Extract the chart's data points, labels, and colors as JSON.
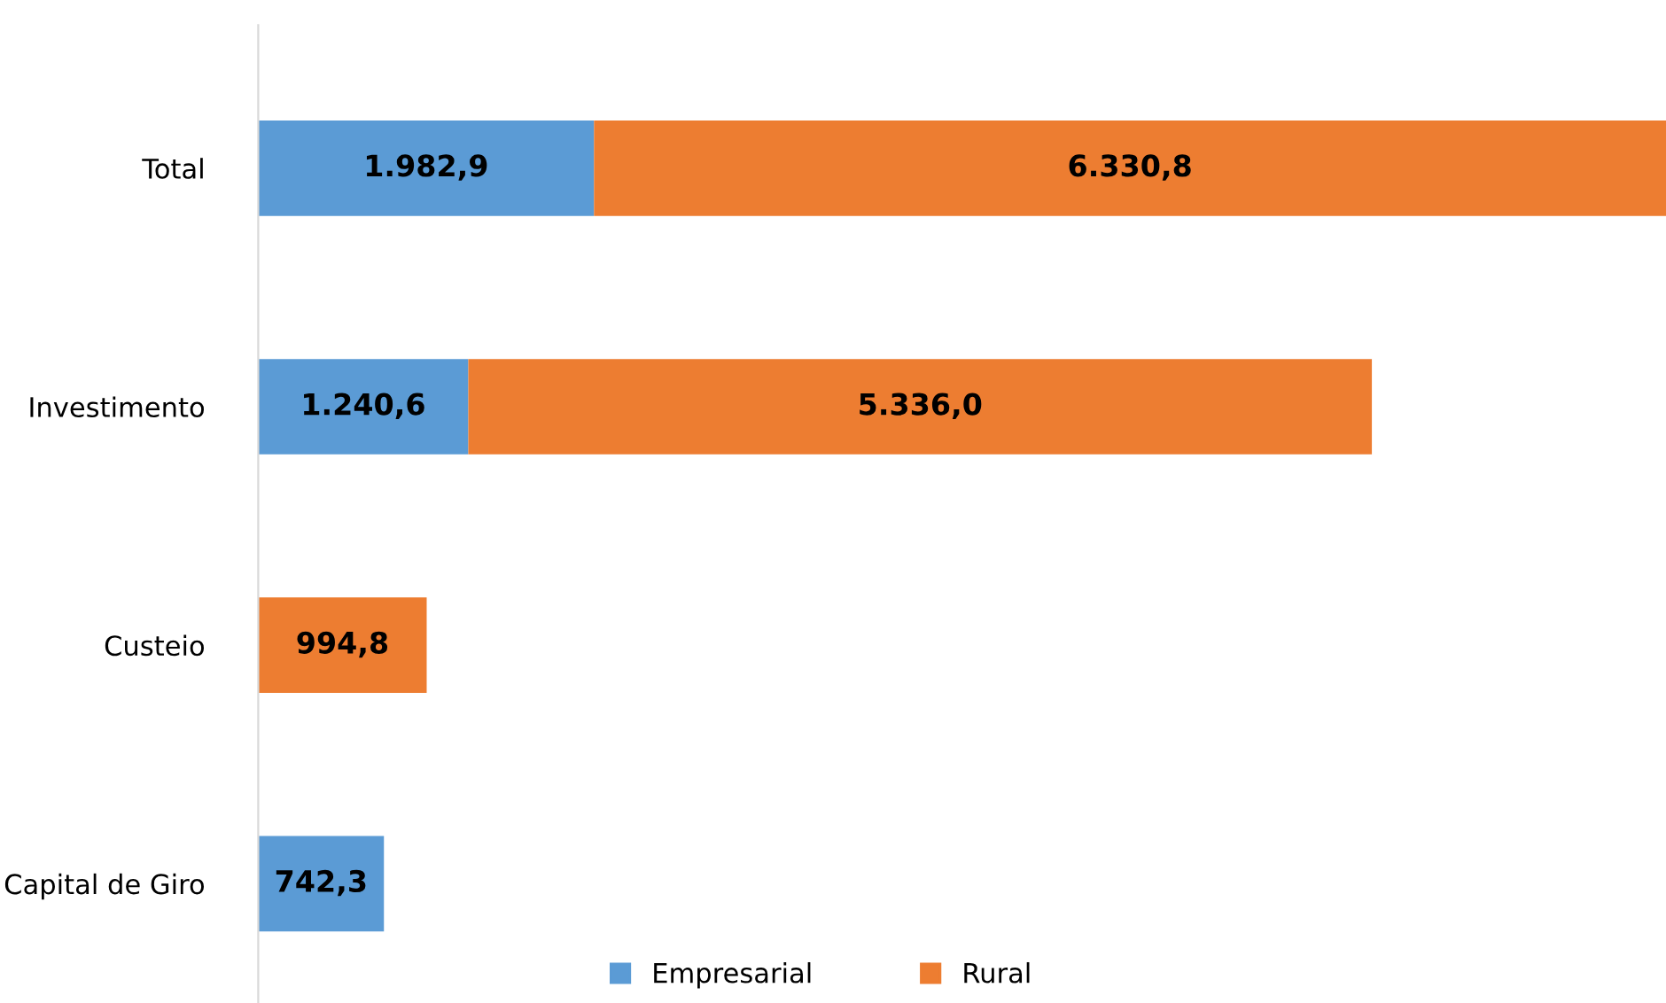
{
  "chart_data": {
    "type": "bar",
    "orientation": "horizontal",
    "stacked": true,
    "categories": [
      "Total",
      "Investimento",
      "Custeio",
      "Capital de Giro"
    ],
    "series": [
      {
        "name": "Empresarial",
        "color": "#5b9bd5",
        "values": [
          1982.9,
          1240.6,
          null,
          742.3
        ],
        "value_labels": [
          "1.982,9",
          "1.240,6",
          null,
          "742,3"
        ]
      },
      {
        "name": "Rural",
        "color": "#ed7d31",
        "values": [
          6330.8,
          5336.0,
          994.8,
          null
        ],
        "value_labels": [
          "6.330,8",
          "5.336,0",
          "994,8",
          null
        ]
      }
    ],
    "legend": "bottom",
    "grid": false,
    "tick_labels": "y"
  }
}
